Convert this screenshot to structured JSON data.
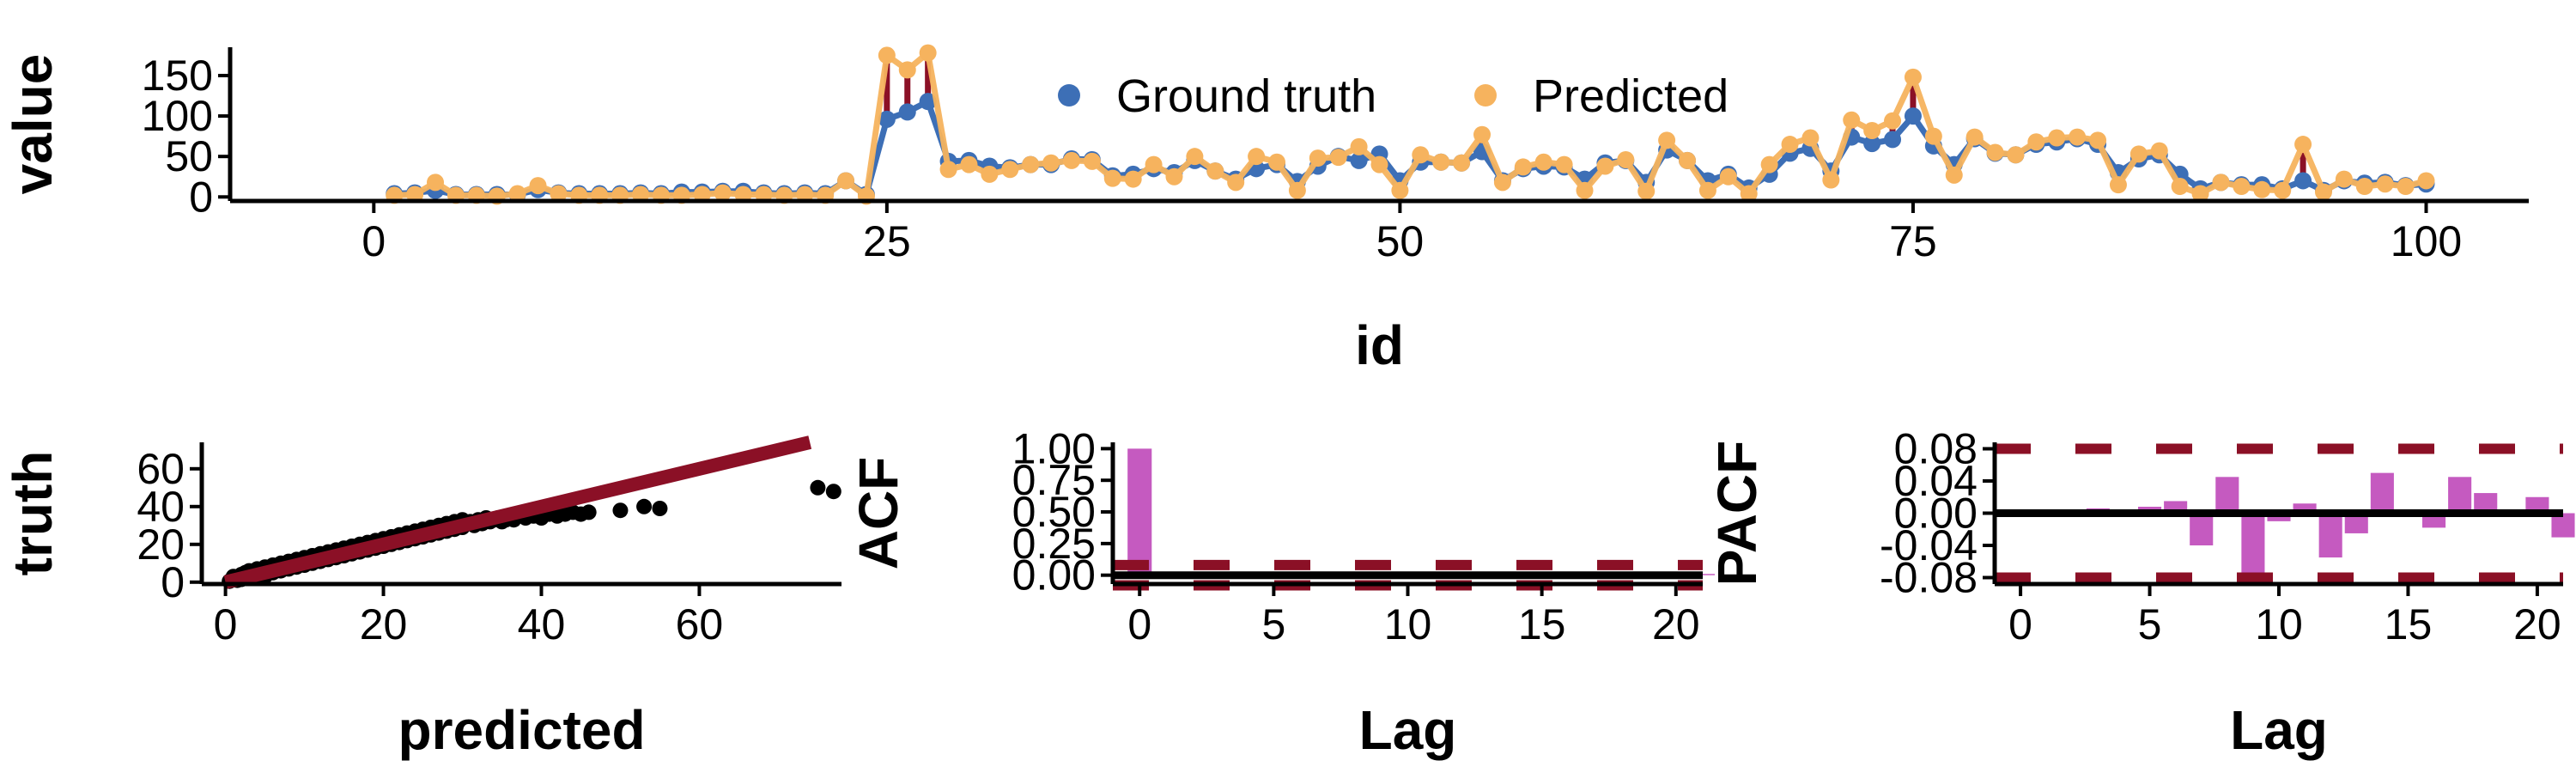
{
  "colors": {
    "ground_truth": "#3d6fb6",
    "predicted": "#f6b35e",
    "error": "#8b1026",
    "bar": "#c55ac0",
    "axis": "#000000"
  },
  "chart_data": [
    {
      "type": "line",
      "xlabel": "id",
      "ylabel": "value",
      "xlim": [
        -7,
        105
      ],
      "ylim": [
        -5,
        185
      ],
      "xticks": [
        "0",
        "25",
        "50",
        "75",
        "100"
      ],
      "yticks": [
        "0",
        "50",
        "100",
        "150"
      ],
      "legend": {
        "placement": "top-center",
        "entries": [
          "Ground truth",
          "Predicted"
        ]
      },
      "series": [
        {
          "name": "Ground truth",
          "values": [
            4,
            5,
            8,
            3,
            3,
            3,
            3,
            9,
            5,
            4,
            4,
            4,
            5,
            4,
            6,
            6,
            7,
            7,
            5,
            4,
            5,
            4,
            20,
            3,
            96,
            105,
            118,
            44,
            45,
            38,
            36,
            40,
            40,
            47,
            46,
            26,
            28,
            35,
            30,
            45,
            32,
            22,
            35,
            40,
            19,
            38,
            50,
            45,
            53,
            20,
            43,
            43,
            42,
            56,
            20,
            35,
            38,
            37,
            22,
            42,
            45,
            18,
            58,
            45,
            20,
            28,
            11,
            28,
            54,
            60,
            32,
            74,
            66,
            71,
            100,
            63,
            40,
            72,
            54,
            52,
            65,
            68,
            72,
            65,
            30,
            47,
            52,
            28,
            10,
            18,
            15,
            15,
            10,
            20,
            8,
            20,
            17,
            18,
            14,
            16
          ]
        },
        {
          "name": "Predicted",
          "values": [
            2,
            3,
            18,
            2,
            2,
            1,
            4,
            14,
            4,
            2,
            2,
            2,
            3,
            2,
            2,
            3,
            5,
            3,
            3,
            2,
            3,
            2,
            20,
            1,
            175,
            157,
            178,
            34,
            40,
            28,
            34,
            40,
            42,
            45,
            44,
            23,
            22,
            40,
            25,
            50,
            32,
            18,
            50,
            43,
            8,
            48,
            49,
            62,
            40,
            8,
            52,
            43,
            42,
            77,
            18,
            37,
            43,
            40,
            8,
            38,
            46,
            7,
            70,
            45,
            8,
            25,
            4,
            40,
            65,
            73,
            21,
            95,
            82,
            94,
            148,
            75,
            27,
            74,
            55,
            52,
            68,
            73,
            74,
            70,
            15,
            53,
            57,
            13,
            4,
            18,
            13,
            9,
            8,
            65,
            6,
            22,
            13,
            16,
            13,
            20
          ]
        }
      ]
    },
    {
      "type": "scatter",
      "xlabel": "predicted",
      "ylabel": "truth",
      "xlim": [
        -3,
        78
      ],
      "ylim": [
        -1,
        74
      ],
      "xticks": [
        "0",
        "20",
        "40",
        "60"
      ],
      "yticks": [
        "0",
        "20",
        "40",
        "60"
      ],
      "reference_line": {
        "slope": 1,
        "intercept": 0
      },
      "points": [
        [
          0.5,
          0.5
        ],
        [
          1,
          3
        ],
        [
          1.5,
          1
        ],
        [
          2,
          4
        ],
        [
          2,
          1.5
        ],
        [
          2.5,
          5
        ],
        [
          3,
          2
        ],
        [
          3,
          6
        ],
        [
          3.5,
          3
        ],
        [
          4,
          7
        ],
        [
          4,
          4
        ],
        [
          4.5,
          5
        ],
        [
          5,
          8
        ],
        [
          5,
          3
        ],
        [
          5.5,
          6
        ],
        [
          6,
          9
        ],
        [
          6,
          5
        ],
        [
          6.5,
          7
        ],
        [
          7,
          10
        ],
        [
          7,
          6
        ],
        [
          7.5,
          8
        ],
        [
          8,
          11
        ],
        [
          8,
          7
        ],
        [
          8.5,
          9
        ],
        [
          9,
          12
        ],
        [
          9,
          8
        ],
        [
          9.5,
          10
        ],
        [
          10,
          13
        ],
        [
          10,
          9
        ],
        [
          10.5,
          11
        ],
        [
          11,
          14
        ],
        [
          11,
          10
        ],
        [
          11.5,
          12
        ],
        [
          12,
          15
        ],
        [
          12,
          11
        ],
        [
          12.5,
          13
        ],
        [
          13,
          16
        ],
        [
          13,
          12
        ],
        [
          13.5,
          14
        ],
        [
          14,
          17
        ],
        [
          14,
          13
        ],
        [
          14.5,
          15
        ],
        [
          15,
          18
        ],
        [
          15,
          14
        ],
        [
          15.5,
          16
        ],
        [
          16,
          19
        ],
        [
          16,
          15
        ],
        [
          16.5,
          17
        ],
        [
          17,
          20
        ],
        [
          17,
          16
        ],
        [
          17.5,
          18
        ],
        [
          18,
          21
        ],
        [
          18,
          17
        ],
        [
          18.5,
          19
        ],
        [
          19,
          22
        ],
        [
          19,
          18
        ],
        [
          19.5,
          20
        ],
        [
          20,
          23
        ],
        [
          20,
          19
        ],
        [
          20.5,
          21
        ],
        [
          21,
          24
        ],
        [
          21,
          20
        ],
        [
          21.5,
          22
        ],
        [
          22,
          25
        ],
        [
          22,
          21
        ],
        [
          22.5,
          23
        ],
        [
          23,
          26
        ],
        [
          23,
          22
        ],
        [
          23.5,
          24
        ],
        [
          24,
          27
        ],
        [
          24,
          23
        ],
        [
          24.5,
          25
        ],
        [
          25,
          28
        ],
        [
          25,
          24
        ],
        [
          25.5,
          26
        ],
        [
          26,
          29
        ],
        [
          26,
          25
        ],
        [
          26.5,
          27
        ],
        [
          27,
          30
        ],
        [
          27,
          26
        ],
        [
          27.5,
          28
        ],
        [
          28,
          31
        ],
        [
          28,
          27
        ],
        [
          28.5,
          29
        ],
        [
          29,
          32
        ],
        [
          29,
          28
        ],
        [
          29.5,
          30
        ],
        [
          30,
          33
        ],
        [
          30,
          29
        ],
        [
          30.5,
          31
        ],
        [
          31,
          32
        ],
        [
          31.5,
          30
        ],
        [
          32,
          33
        ],
        [
          32.5,
          31
        ],
        [
          33,
          34
        ],
        [
          33.5,
          32
        ],
        [
          34,
          33
        ],
        [
          34.5,
          34
        ],
        [
          35,
          32
        ],
        [
          35.5,
          33
        ],
        [
          36,
          34
        ],
        [
          36.5,
          33
        ],
        [
          37,
          35
        ],
        [
          38,
          34
        ],
        [
          39,
          35
        ],
        [
          40,
          34
        ],
        [
          41,
          36
        ],
        [
          42,
          35
        ],
        [
          43,
          36
        ],
        [
          44,
          37
        ],
        [
          45,
          36
        ],
        [
          46,
          37
        ],
        [
          50,
          38
        ],
        [
          53,
          40
        ],
        [
          55,
          39
        ],
        [
          75,
          50
        ],
        [
          77,
          48
        ]
      ]
    },
    {
      "type": "bar",
      "xlabel": "Lag",
      "ylabel": "ACF",
      "xlim": [
        -1,
        21
      ],
      "ylim": [
        -0.07,
        1.05
      ],
      "xticks": [
        "0",
        "5",
        "10",
        "15",
        "20"
      ],
      "yticks": [
        "0.00",
        "0.25",
        "0.50",
        "0.75",
        "1.00"
      ],
      "confidence_band": 0.08,
      "x": [
        0,
        1,
        2,
        3,
        4,
        5,
        6,
        7,
        8,
        9,
        10,
        11,
        12,
        13,
        14,
        15,
        16,
        17,
        18,
        19,
        20,
        21
      ],
      "values": [
        1.0,
        0.01,
        -0.01,
        0.02,
        0.01,
        0.02,
        -0.02,
        0.01,
        0.01,
        -0.02,
        0.02,
        -0.01,
        0.01,
        0.02,
        -0.01,
        0.01,
        0.02,
        -0.01,
        0.01,
        0.02,
        -0.01,
        0.01
      ]
    },
    {
      "type": "bar",
      "xlabel": "Lag",
      "ylabel": "PACF",
      "xlim": [
        -1,
        21
      ],
      "ylim": [
        -0.088,
        0.088
      ],
      "xticks": [
        "0",
        "5",
        "10",
        "15",
        "20"
      ],
      "yticks": [
        "-0.08",
        "-0.04",
        "0.00",
        "0.04",
        "0.08"
      ],
      "confidence_band": 0.08,
      "x": [
        2,
        3,
        4,
        5,
        6,
        7,
        8,
        9,
        10,
        11,
        12,
        13,
        14,
        15,
        16,
        17,
        18,
        19,
        20,
        21
      ],
      "values": [
        0.003,
        0.006,
        0.004,
        0.008,
        0.015,
        -0.04,
        0.045,
        -0.085,
        -0.01,
        0.012,
        -0.055,
        -0.025,
        0.05,
        0.003,
        -0.018,
        0.045,
        0.025,
        -0.003,
        0.02,
        -0.03
      ]
    }
  ]
}
